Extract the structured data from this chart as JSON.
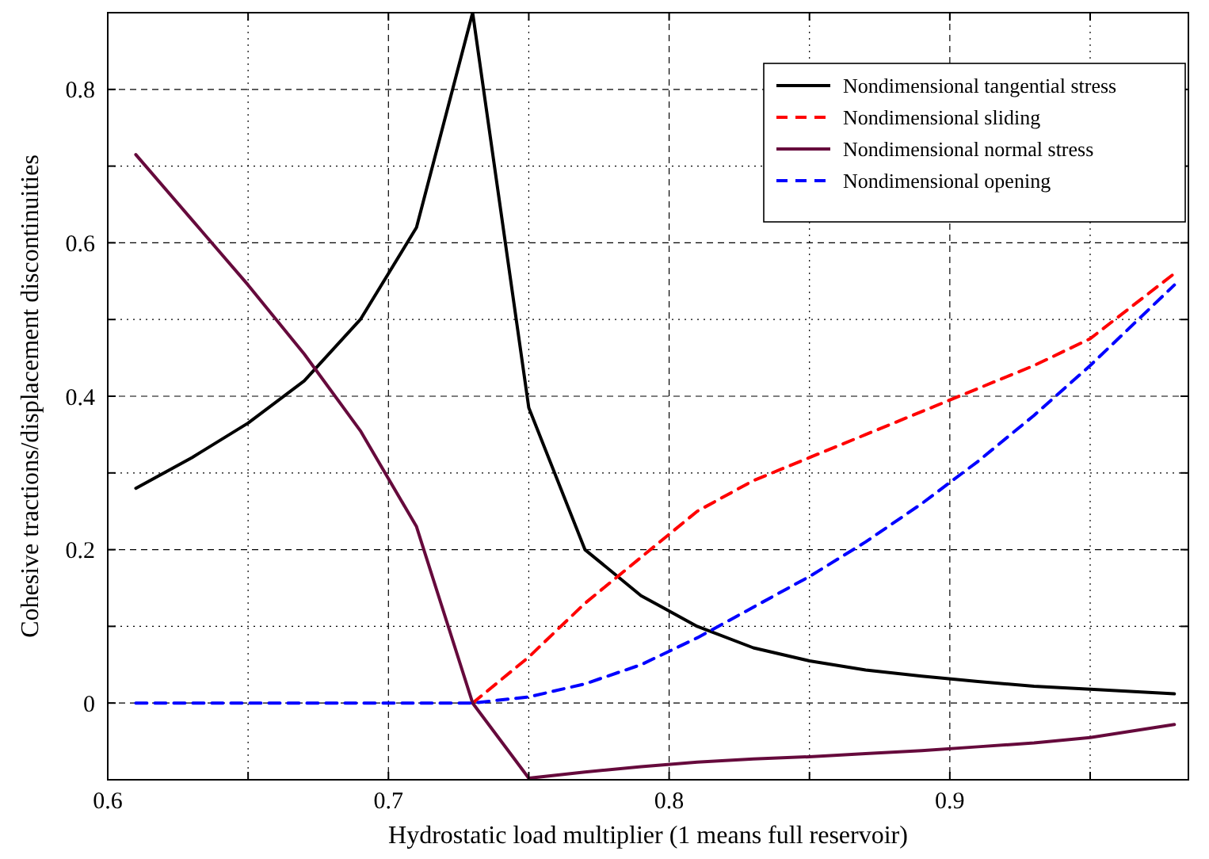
{
  "chart_data": {
    "type": "line",
    "xlabel": "Hydrostatic load multiplier (1 means full reservoir)",
    "ylabel": "Cohesive tractions/displacement discontinuities",
    "x": [
      0.61,
      0.63,
      0.65,
      0.67,
      0.69,
      0.71,
      0.73,
      0.75,
      0.77,
      0.79,
      0.81,
      0.83,
      0.85,
      0.87,
      0.89,
      0.91,
      0.93,
      0.95,
      0.98
    ],
    "series": [
      {
        "name": "Nondimensional tangential stress",
        "color": "#000000",
        "line_style": "solid",
        "values": [
          0.28,
          0.32,
          0.365,
          0.42,
          0.5,
          0.62,
          0.9,
          0.385,
          0.2,
          0.14,
          0.1,
          0.072,
          0.055,
          0.043,
          0.035,
          0.028,
          0.022,
          0.018,
          0.012
        ]
      },
      {
        "name": "Nondimensional sliding",
        "color": "#ff0000",
        "line_style": "dashed",
        "values": [
          null,
          null,
          null,
          null,
          null,
          null,
          0,
          0.06,
          0.13,
          0.19,
          0.25,
          0.29,
          0.32,
          0.35,
          0.38,
          0.41,
          0.44,
          0.475,
          0.56
        ]
      },
      {
        "name": "Nondimensional normal stress",
        "color": "#660a3c",
        "line_style": "solid",
        "values": [
          0.715,
          0.63,
          0.545,
          0.455,
          0.355,
          0.23,
          0,
          -0.098,
          -0.09,
          -0.083,
          -0.077,
          -0.073,
          -0.07,
          -0.066,
          -0.062,
          -0.057,
          -0.052,
          -0.045,
          -0.028
        ]
      },
      {
        "name": "Nondimensional opening",
        "color": "#0000ff",
        "line_style": "dashed",
        "values": [
          0,
          0,
          0,
          0,
          0,
          0,
          0,
          0.008,
          0.025,
          0.05,
          0.085,
          0.125,
          0.165,
          0.21,
          0.26,
          0.315,
          0.375,
          0.44,
          0.545
        ]
      }
    ],
    "xlim": [
      0.6,
      0.985
    ],
    "ylim": [
      -0.1,
      0.9
    ],
    "xticks": [
      0.6,
      {
        "value": 0.65,
        "label": null
      },
      0.7,
      {
        "value": 0.75,
        "label": null
      },
      0.8,
      {
        "value": 0.85,
        "label": null
      },
      0.9,
      {
        "value": 0.95,
        "label": null
      }
    ],
    "yticks": [
      0,
      {
        "value": 0.1,
        "label": null
      },
      0.2,
      {
        "value": 0.3,
        "label": null
      },
      0.4,
      {
        "value": 0.5,
        "label": null
      },
      0.6,
      {
        "value": 0.7,
        "label": null
      },
      0.8
    ],
    "grid": true,
    "legend": "top right"
  }
}
